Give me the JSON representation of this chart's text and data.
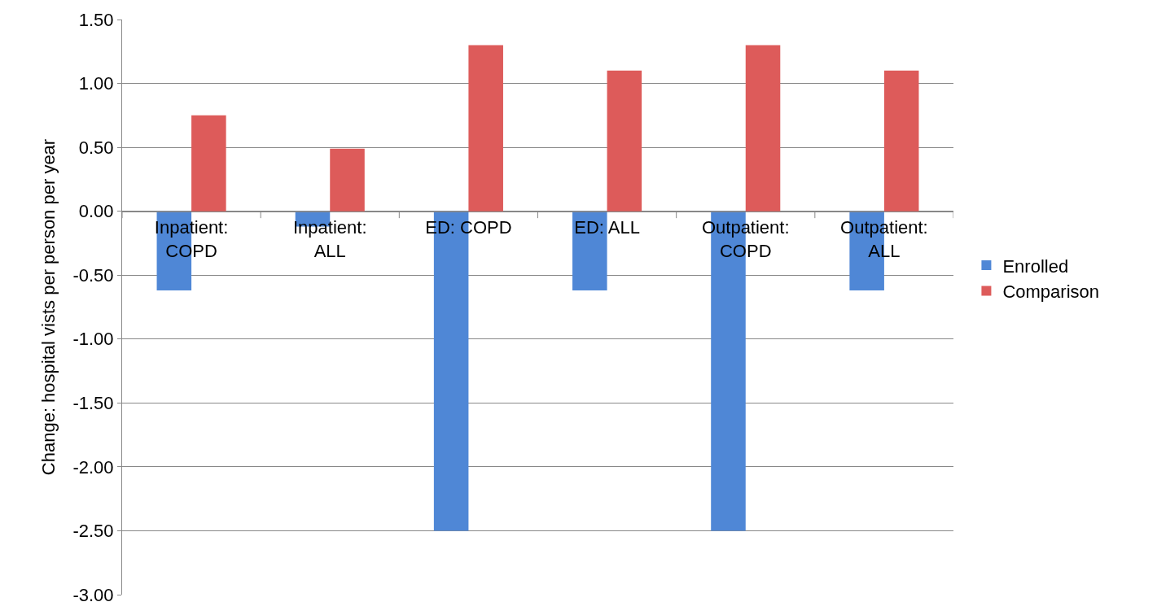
{
  "chart_data": {
    "type": "bar",
    "ylabel": "Change: hospital vists per person per year",
    "categories": [
      "Inpatient: COPD",
      "Inpatient: ALL",
      "ED: COPD",
      "ED: ALL",
      "Outpatient: COPD",
      "Outpatient: ALL"
    ],
    "series": [
      {
        "name": "Enrolled",
        "color": "#4f87d6",
        "values": [
          -0.62,
          -0.12,
          -2.5,
          -0.62,
          -2.5,
          -0.62
        ]
      },
      {
        "name": "Comparison",
        "color": "#dd5b5a",
        "values": [
          0.75,
          0.49,
          1.3,
          1.1,
          1.3,
          1.1
        ]
      }
    ],
    "ylim": [
      -3.0,
      1.5
    ],
    "yticks": [
      {
        "value": -3.0,
        "label": "-3.00"
      },
      {
        "value": -2.5,
        "label": "-2.50"
      },
      {
        "value": -2.0,
        "label": "-2.00"
      },
      {
        "value": -1.5,
        "label": "-1.50"
      },
      {
        "value": -1.0,
        "label": "-1.00"
      },
      {
        "value": -0.5,
        "label": "-0.50"
      },
      {
        "value": 0.0,
        "label": "0.00"
      },
      {
        "value": 0.5,
        "label": "0.50"
      },
      {
        "value": 1.0,
        "label": "1.00"
      },
      {
        "value": 1.5,
        "label": "1.50"
      }
    ],
    "grid": "y",
    "legend": "right"
  }
}
